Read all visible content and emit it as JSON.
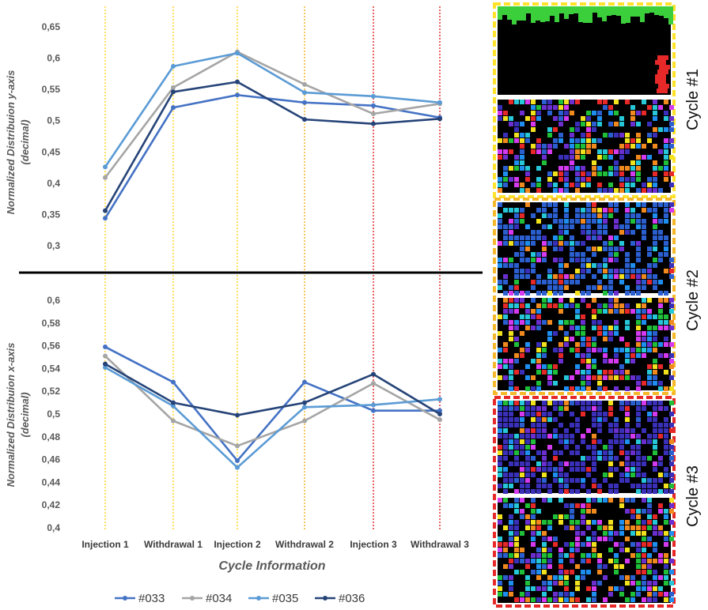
{
  "chart_data": [
    {
      "type": "line",
      "title": "",
      "ylabel": [
        "Normalized Distribuion y-axis",
        "(decimal)"
      ],
      "xlabel": "",
      "ylim": [
        0.3,
        0.65
      ],
      "yticks": [
        "0,3",
        "0,35",
        "0,4",
        "0,45",
        "0,5",
        "0,55",
        "0,6",
        "0,65"
      ],
      "categories": [
        "Injection 1",
        "Withdrawal 1",
        "Injection 2",
        "Withdrawal 2",
        "Injection 3",
        "Withdrawal 3"
      ],
      "series": [
        {
          "name": "#033",
          "values": [
            0.344,
            0.521,
            0.541,
            0.529,
            0.524,
            0.505
          ]
        },
        {
          "name": "#034",
          "values": [
            0.409,
            0.553,
            0.61,
            0.558,
            0.511,
            0.527
          ]
        },
        {
          "name": "#035",
          "values": [
            0.426,
            0.587,
            0.608,
            0.545,
            0.539,
            0.529
          ]
        },
        {
          "name": "#036",
          "values": [
            0.356,
            0.546,
            0.562,
            0.502,
            0.495,
            0.503
          ]
        }
      ]
    },
    {
      "type": "line",
      "title": "",
      "ylabel": [
        "Normalized Distribuion x-axis",
        "(decimal)"
      ],
      "xlabel": "Cycle Information",
      "ylim": [
        0.4,
        0.6
      ],
      "yticks": [
        "0,4",
        "0,42",
        "0,44",
        "0,46",
        "0,48",
        "0,5",
        "0,52",
        "0,54",
        "0,56",
        "0,58",
        "0,6"
      ],
      "categories": [
        "Injection 1",
        "Withdrawal 1",
        "Injection 2",
        "Withdrawal 2",
        "Injection 3",
        "Withdrawal 3"
      ],
      "series": [
        {
          "name": "#033",
          "values": [
            0.559,
            0.528,
            0.459,
            0.528,
            0.503,
            0.503
          ]
        },
        {
          "name": "#034",
          "values": [
            0.551,
            0.494,
            0.472,
            0.494,
            0.527,
            0.495
          ]
        },
        {
          "name": "#035",
          "values": [
            0.541,
            0.507,
            0.453,
            0.506,
            0.508,
            0.513
          ]
        },
        {
          "name": "#036",
          "values": [
            0.544,
            0.51,
            0.499,
            0.51,
            0.535,
            0.5
          ]
        }
      ]
    }
  ],
  "series_colors": [
    "#4472c4",
    "#a5a5a5",
    "#5b9bd5",
    "#264478"
  ],
  "cycle_line_colors": [
    "#ffd21f",
    "#ffd21f",
    "#ffd21f",
    "#f2b01e",
    "#e0201f",
    "#e0201f"
  ],
  "divider_color": "#000000",
  "cycle_labels": [
    "Cycle #1",
    "Cycle #2",
    "Cycle #3"
  ],
  "cycle_colors": [
    "#ffe22a",
    "#f5b82a",
    "#e62828"
  ],
  "legend": [
    "#033",
    "#034",
    "#035",
    "#036"
  ]
}
